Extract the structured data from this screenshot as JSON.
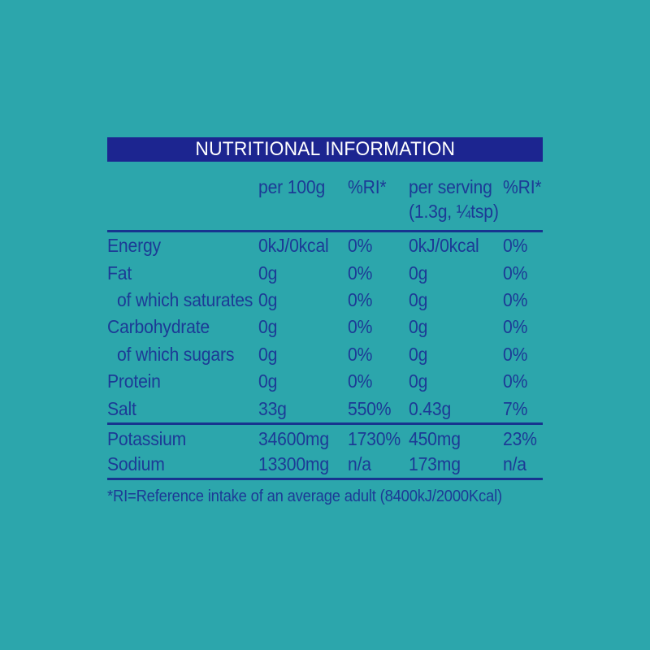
{
  "title": "NUTRITIONAL INFORMATION",
  "header": {
    "col_per_100g": "per 100g",
    "col_ri_100g": "%RI*",
    "col_per_serving": "per serving",
    "serving_note": "(1.3g, ¼tsp)",
    "col_ri_serving": "%RI*"
  },
  "rows": [
    {
      "label": "Energy",
      "per_100g": "0kJ/0kcal",
      "ri_100g": "0%",
      "per_serving": "0kJ/0kcal",
      "ri_serving": "0%"
    },
    {
      "label": "Fat",
      "per_100g": "0g",
      "ri_100g": "0%",
      "per_serving": "0g",
      "ri_serving": "0%"
    },
    {
      "label": "of which saturates",
      "per_100g": "0g",
      "ri_100g": "0%",
      "per_serving": "0g",
      "ri_serving": "0%"
    },
    {
      "label": "Carbohydrate",
      "per_100g": "0g",
      "ri_100g": "0%",
      "per_serving": "0g",
      "ri_serving": "0%"
    },
    {
      "label": "of which sugars",
      "per_100g": "0g",
      "ri_100g": "0%",
      "per_serving": "0g",
      "ri_serving": "0%"
    },
    {
      "label": "Protein",
      "per_100g": "0g",
      "ri_100g": "0%",
      "per_serving": "0g",
      "ri_serving": "0%"
    },
    {
      "label": "Salt",
      "per_100g": "33g",
      "ri_100g": "550%",
      "per_serving": "0.43g",
      "ri_serving": "7%"
    }
  ],
  "mineral_rows": [
    {
      "label": "Potassium",
      "per_100g": "34600mg",
      "ri_100g": "1730%",
      "per_serving": "450mg",
      "ri_serving": "23%"
    },
    {
      "label": "Sodium",
      "per_100g": "13300mg",
      "ri_100g": "n/a",
      "per_serving": "173mg",
      "ri_serving": "n/a"
    }
  ],
  "footnote": "*RI=Reference intake of an average adult (8400kJ/2000Kcal)",
  "colors": {
    "background": "#2CA6AC",
    "title_bar": "#1C2590",
    "title_text": "#FFFFFF",
    "table_text": "#1C3A96",
    "rule": "#17348F"
  }
}
